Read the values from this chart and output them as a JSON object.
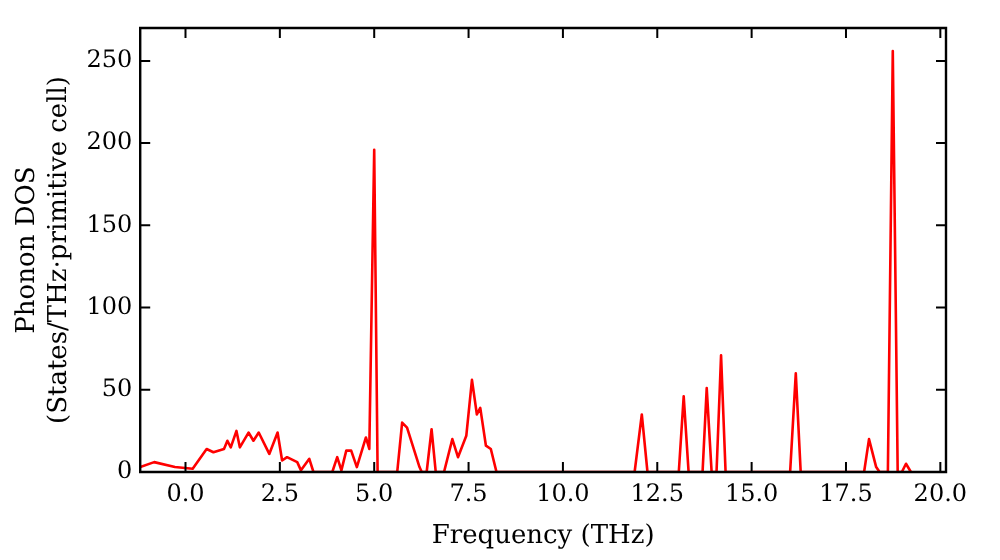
{
  "chart_data": {
    "type": "line",
    "xlabel": "Frequency (THz)",
    "ylabel": "Phonon DOS\n(States/THz·primitive cell)",
    "xlim": [
      -1.2,
      20.15
    ],
    "ylim": [
      0,
      270
    ],
    "xticks": [
      {
        "value": 0,
        "label": "0.0"
      },
      {
        "value": 2.5,
        "label": "2.5"
      },
      {
        "value": 5,
        "label": "5.0"
      },
      {
        "value": 7.5,
        "label": "7.5"
      },
      {
        "value": 10,
        "label": "10.0"
      },
      {
        "value": 12.5,
        "label": "12.5"
      },
      {
        "value": 15,
        "label": "15.0"
      },
      {
        "value": 17.5,
        "label": "17.5"
      },
      {
        "value": 20,
        "label": "20.0"
      }
    ],
    "yticks": [
      0,
      50,
      100,
      150,
      200,
      250
    ],
    "marker": "none",
    "line_style": "solid",
    "grid": false,
    "legend": false,
    "series": [
      {
        "color": "#ff0000",
        "x": [
          -1.2,
          -0.83,
          -0.28,
          0.19,
          0.56,
          0.74,
          1.02,
          1.11,
          1.2,
          1.35,
          1.44,
          1.67,
          1.8,
          1.94,
          2.22,
          2.44,
          2.56,
          2.69,
          2.96,
          3.06,
          3.28,
          3.39,
          3.89,
          4.02,
          4.13,
          4.26,
          4.39,
          4.54,
          4.78,
          4.87,
          5.0,
          5.09,
          5.61,
          5.74,
          5.87,
          6.2,
          6.26,
          6.39,
          6.52,
          6.63,
          6.85,
          7.07,
          7.22,
          7.44,
          7.59,
          7.72,
          7.81,
          7.96,
          8.09,
          8.24,
          11.9,
          12.09,
          12.24,
          13.07,
          13.2,
          13.33,
          13.7,
          13.81,
          13.94,
          14.07,
          14.19,
          14.31,
          16.02,
          16.17,
          16.3,
          17.98,
          18.11,
          18.3,
          18.39,
          18.61,
          18.74,
          18.87,
          18.98,
          19.09,
          19.22
        ],
        "values": [
          3,
          6,
          3,
          2,
          14,
          12,
          14,
          19,
          15,
          25,
          15,
          24,
          19,
          24,
          11,
          24,
          7,
          9,
          6,
          1,
          8,
          0,
          0,
          9,
          1,
          13,
          13,
          3,
          21,
          14,
          196,
          0,
          0,
          30,
          27,
          3,
          0,
          0,
          26,
          0,
          0,
          20,
          9,
          22,
          56,
          35,
          39,
          16,
          14,
          0,
          0,
          35,
          0,
          0,
          46,
          0,
          0,
          51,
          0,
          0,
          71,
          0,
          0,
          60,
          0,
          0,
          20,
          3,
          0,
          0,
          256,
          0,
          0,
          5,
          0
        ]
      }
    ]
  }
}
